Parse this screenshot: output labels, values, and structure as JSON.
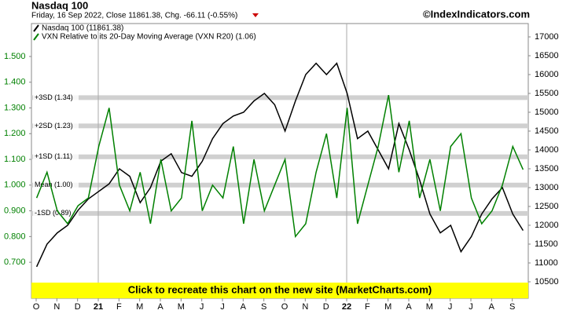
{
  "chart_data": {
    "type": "line",
    "title": "Nasdaq 100",
    "subtitle": "Friday, 16 Sep 2022, Close 11861.38, Chg. -66.11 (-0.55%)",
    "source": "©IndexIndicators.com",
    "banner": "Click to recreate this chart on the new site (MarketCharts.com)",
    "categories": [
      "O",
      null,
      "N",
      null,
      "D",
      null,
      "21",
      null,
      "F",
      null,
      "M",
      null,
      "A",
      null,
      "M",
      null,
      "J",
      null,
      "J",
      null,
      "A",
      null,
      "S",
      null,
      "O",
      null,
      "N",
      null,
      "D",
      null,
      "22",
      null,
      "F",
      null,
      "M",
      null,
      "A",
      null,
      "M",
      null,
      "J",
      null,
      "J",
      null,
      "A",
      null,
      "S",
      null
    ],
    "year_marks": [
      "21",
      "22"
    ],
    "series": [
      {
        "name": "Nasdaq 100 (11861.38)",
        "color": "#000000",
        "axis": "y2",
        "values": [
          10900,
          11500,
          11800,
          12000,
          12400,
          12700,
          12900,
          13100,
          13500,
          13300,
          12600,
          13000,
          13700,
          13900,
          13400,
          13300,
          13700,
          14300,
          14700,
          14900,
          15000,
          15300,
          15500,
          15200,
          14500,
          15300,
          16000,
          16300,
          16000,
          16300,
          15500,
          14300,
          14500,
          14000,
          13500,
          14700,
          14000,
          13200,
          12300,
          11800,
          12000,
          11300,
          11700,
          12300,
          12700,
          13000,
          12300,
          11862
        ]
      },
      {
        "name": "VXN Relative to its 20-Day Moving Average (VXN R20) (1.06)",
        "color": "#008000",
        "values": [
          0.95,
          1.05,
          0.9,
          0.85,
          0.92,
          0.95,
          1.15,
          1.3,
          1.0,
          0.9,
          1.05,
          0.85,
          1.1,
          0.9,
          0.95,
          1.25,
          0.9,
          1.0,
          0.95,
          1.15,
          0.85,
          1.1,
          0.9,
          1.0,
          1.1,
          0.8,
          0.85,
          1.05,
          1.2,
          0.95,
          1.3,
          0.85,
          1.0,
          1.15,
          1.35,
          1.05,
          1.25,
          0.95,
          1.1,
          0.9,
          1.15,
          1.2,
          0.95,
          0.85,
          0.9,
          1.0,
          1.15,
          1.06
        ]
      }
    ],
    "reference_lines": [
      {
        "label": "+3SD (1.34)",
        "value": 1.34
      },
      {
        "label": "+2SD (1.23)",
        "value": 1.23
      },
      {
        "label": "+1SD (1.11)",
        "value": 1.11
      },
      {
        "label": "Mean (1.00)",
        "value": 1.0
      },
      {
        "label": "-1SD (0.89)",
        "value": 0.89
      }
    ],
    "ylim": [
      0.56,
      1.628
    ],
    "yticks": [
      {
        "value": 0.7,
        "label": "0.700"
      },
      {
        "value": 0.8,
        "label": "0.800"
      },
      {
        "value": 0.9,
        "label": "0.900"
      },
      {
        "value": 1.0,
        "label": "1.000"
      },
      {
        "value": 1.1,
        "label": "1.100"
      },
      {
        "value": 1.2,
        "label": "1.200"
      },
      {
        "value": 1.3,
        "label": "1.300"
      },
      {
        "value": 1.4,
        "label": "1.400"
      },
      {
        "value": 1.5,
        "label": "1.500"
      }
    ],
    "y2lim": [
      10062,
      17354
    ],
    "y2ticks": [
      10500,
      11000,
      11500,
      12000,
      12500,
      13000,
      13500,
      14000,
      14500,
      15000,
      15500,
      16000,
      16500,
      17000
    ]
  }
}
